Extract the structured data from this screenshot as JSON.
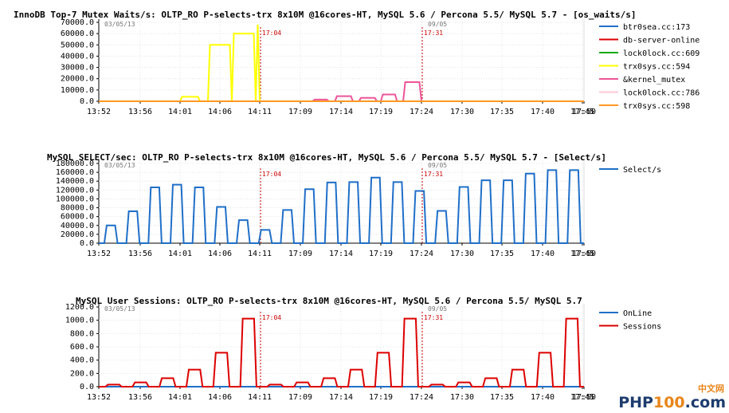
{
  "chart_data": [
    {
      "type": "line",
      "title": "InnoDB Top-7 Mutex Waits/s: OLTP_RO P-selects-trx 8x10M @16cores-HT, MySQL 5.6 / Percona 5.5/ MySQL 5.7 - [os_waits/s]",
      "date_start": "03/05/13",
      "date_end": "09/05",
      "markers": [
        "17:04",
        "17:31"
      ],
      "x_ticks": [
        "13:52",
        "13:56",
        "14:01",
        "14:06",
        "14:11",
        "17:09",
        "17:14",
        "17:19",
        "17:24",
        "17:30",
        "17:35",
        "17:40",
        "17:45",
        "17:50"
      ],
      "y_ticks": [
        "0.0",
        "10000.0",
        "20000.0",
        "30000.0",
        "40000.0",
        "50000.0",
        "60000.0",
        "70000.0"
      ],
      "ylim": [
        0,
        70000
      ],
      "series": [
        {
          "name": "btr0sea.cc:173",
          "color": "#1f6fc8",
          "values": [
            0,
            0,
            0,
            0,
            0,
            0,
            0,
            0,
            0,
            0,
            0,
            0,
            0,
            0
          ]
        },
        {
          "name": "db-server-online",
          "color": "#dd0000",
          "values": [
            0,
            0,
            0,
            0,
            0,
            0,
            0,
            0,
            0,
            0,
            0,
            0,
            0,
            0
          ]
        },
        {
          "name": "lock0lock.cc:609",
          "color": "#11aa11",
          "values": [
            0,
            0,
            0,
            0,
            0,
            0,
            0,
            0,
            0,
            0,
            0,
            0,
            0,
            0
          ]
        },
        {
          "name": "trx0sys.cc:594",
          "color": "#ffff00",
          "values": [
            0,
            0,
            4000,
            50000,
            60000,
            68000,
            0,
            0,
            0,
            0,
            0,
            0,
            0,
            0
          ]
        },
        {
          "name": "&kernel_mutex",
          "color": "#ee5599",
          "values": [
            0,
            0,
            0,
            0,
            0,
            0,
            1500,
            4500,
            3000,
            6000,
            17000,
            0,
            0,
            0
          ]
        },
        {
          "name": "lock0lock.cc:786",
          "color": "#ffc8d4",
          "values": [
            0,
            0,
            0,
            0,
            0,
            0,
            0,
            0,
            0,
            0,
            0,
            0,
            0,
            0
          ]
        },
        {
          "name": "trx0sys.cc:598",
          "color": "#ff9922",
          "values": [
            0,
            0,
            0,
            0,
            0,
            0,
            0,
            0,
            0,
            0,
            0,
            0,
            0,
            0
          ]
        }
      ]
    },
    {
      "type": "line",
      "title": "MySQL SELECT/sec: OLTP_RO P-selects-trx 8x10M @16cores-HT, MySQL 5.6 / Percona 5.5/ MySQL 5.7 - [Select/s]",
      "date_start": "03/05/13",
      "date_end": "09/05",
      "markers": [
        "17:04",
        "17:31"
      ],
      "x_ticks": [
        "13:52",
        "13:56",
        "14:01",
        "14:06",
        "14:11",
        "17:09",
        "17:14",
        "17:19",
        "17:24",
        "17:30",
        "17:35",
        "17:40",
        "17:45",
        "17:50"
      ],
      "y_ticks": [
        "0.0",
        "20000.0",
        "40000.0",
        "60000.0",
        "80000.0",
        "100000.0",
        "120000.0",
        "140000.0",
        "160000.0",
        "180000.0"
      ],
      "ylim": [
        0,
        180000
      ],
      "series": [
        {
          "name": "Select/s",
          "color": "#1f6fc8",
          "plateaus": [
            40000,
            72000,
            126000,
            132000,
            126000,
            82000,
            52000,
            30000,
            75000,
            122000,
            137000,
            138000,
            148000,
            138000,
            118000,
            73000,
            127000,
            142000,
            142000,
            157000,
            165000,
            165000
          ]
        }
      ]
    },
    {
      "type": "line",
      "title": "MySQL User Sessions: OLTP_RO P-selects-trx 8x10M @16cores-HT, MySQL 5.6 / Percona 5.5/ MySQL 5.7",
      "date_start": "03/05/13",
      "date_end": "09/05",
      "markers": [
        "17:04",
        "17:31"
      ],
      "x_ticks": [
        "13:52",
        "13:56",
        "14:01",
        "14:06",
        "14:11",
        "17:09",
        "17:14",
        "17:19",
        "17:24",
        "17:30",
        "17:35",
        "17:40",
        "17:45",
        "17:50"
      ],
      "y_ticks": [
        "0.0",
        "200.0",
        "400.0",
        "600.0",
        "800.0",
        "1000.0",
        "1200.0"
      ],
      "ylim": [
        0,
        1200
      ],
      "series": [
        {
          "name": "OnLine",
          "color": "#1f6fc8",
          "values": [
            0,
            0,
            0,
            0,
            0,
            0,
            0,
            0,
            0,
            0,
            0,
            0,
            0,
            0
          ]
        },
        {
          "name": "Sessions",
          "color": "#dd0000",
          "plateaus": [
            32,
            64,
            128,
            256,
            512,
            1024,
            32,
            64,
            128,
            256,
            512,
            1024,
            32,
            64,
            128,
            256,
            512,
            1024
          ]
        }
      ]
    }
  ],
  "watermark": {
    "top": "中文网",
    "main_a": "PHP",
    "main_b": "100",
    "main_c": ".com"
  }
}
